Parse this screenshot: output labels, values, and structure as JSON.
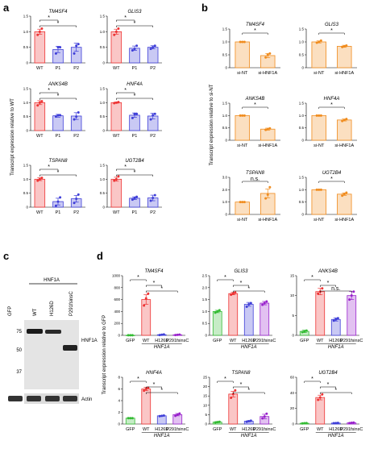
{
  "panels": {
    "a": {
      "letter": "a",
      "ylabel": "Transcript expression relative to WT"
    },
    "b": {
      "letter": "b",
      "ylabel": "Transcript expression relative to si-NT"
    },
    "c": {
      "letter": "c",
      "header": "HNF1A",
      "lanes": [
        "GFP",
        "WT",
        "H126D",
        "P291fsinsC"
      ],
      "markers": [
        "75",
        "50",
        "37"
      ],
      "band_labels": [
        "HNF1A",
        "Actin"
      ]
    },
    "d": {
      "letter": "d",
      "ylabel": "Transcript expression relative to GFP",
      "group_label": "HNF1A"
    }
  },
  "colors": {
    "red": "#ee3333",
    "blue": "#3f3fd8",
    "orange": "#f08c1e",
    "green": "#33bb33",
    "purple": "#9922cc"
  },
  "chart_data": [
    {
      "id": "a1",
      "panel": "a",
      "type": "bar",
      "title": "TM4SF4",
      "categories": [
        "WT",
        "P1",
        "P2"
      ],
      "values": [
        1.0,
        0.43,
        0.5
      ],
      "errors": [
        0.08,
        0.1,
        0.13
      ],
      "points": [
        [
          0.9,
          1.0,
          1.1
        ],
        [
          0.3,
          0.5,
          0.5
        ],
        [
          0.3,
          0.55,
          0.6
        ]
      ],
      "ylim": [
        0,
        1.5
      ],
      "yticks": [
        "0",
        "0.5",
        "1.0",
        "1.5"
      ],
      "colors": [
        "red",
        "blue",
        "blue"
      ],
      "sig": [
        "*",
        "*"
      ]
    },
    {
      "id": "a2",
      "panel": "a",
      "type": "bar",
      "title": "GLIS3",
      "categories": [
        "WT",
        "P1",
        "P2"
      ],
      "values": [
        1.0,
        0.47,
        0.5
      ],
      "errors": [
        0.08,
        0.07,
        0.05
      ],
      "points": [
        [
          0.9,
          1.0,
          1.1
        ],
        [
          0.4,
          0.45,
          0.55
        ],
        [
          0.45,
          0.5,
          0.55
        ]
      ],
      "ylim": [
        0,
        1.5
      ],
      "yticks": [
        "0",
        "0.5",
        "1.0",
        "1.5"
      ],
      "colors": [
        "red",
        "blue",
        "blue"
      ],
      "sig": [
        "*",
        "*"
      ]
    },
    {
      "id": "a3",
      "panel": "a",
      "type": "bar",
      "title": "ANKS4B",
      "categories": [
        "WT",
        "P1",
        "P2"
      ],
      "values": [
        1.0,
        0.53,
        0.52
      ],
      "errors": [
        0.07,
        0.05,
        0.12
      ],
      "points": [
        [
          0.9,
          1.0,
          1.05
        ],
        [
          0.5,
          0.55,
          0.55
        ],
        [
          0.4,
          0.5,
          0.65
        ]
      ],
      "ylim": [
        0,
        1.5
      ],
      "yticks": [
        "0",
        "0.5",
        "1.0",
        "1.5"
      ],
      "colors": [
        "red",
        "blue",
        "blue"
      ],
      "sig": [
        "*",
        "*"
      ]
    },
    {
      "id": "a4",
      "panel": "a",
      "type": "bar",
      "title": "HNF4A",
      "categories": [
        "WT",
        "P1",
        "P2"
      ],
      "values": [
        1.0,
        0.55,
        0.52
      ],
      "errors": [
        0.02,
        0.08,
        0.1
      ],
      "points": [
        [
          0.98,
          1.0,
          1.02
        ],
        [
          0.45,
          0.6,
          0.6
        ],
        [
          0.4,
          0.55,
          0.6
        ]
      ],
      "ylim": [
        0,
        1.5
      ],
      "yticks": [
        "0",
        "0.5",
        "1.0",
        "1.5"
      ],
      "colors": [
        "red",
        "blue",
        "blue"
      ],
      "sig": [
        "*",
        "*"
      ]
    },
    {
      "id": "a5",
      "panel": "a",
      "type": "bar",
      "title": "TSPAN8",
      "categories": [
        "WT",
        "P1",
        "P2"
      ],
      "values": [
        1.0,
        0.2,
        0.3
      ],
      "errors": [
        0.05,
        0.12,
        0.12
      ],
      "points": [
        [
          0.95,
          1.0,
          1.05
        ],
        [
          0.05,
          0.2,
          0.35
        ],
        [
          0.15,
          0.3,
          0.45
        ]
      ],
      "ylim": [
        0,
        1.5
      ],
      "yticks": [
        "0",
        "0.5",
        "1.0",
        "1.5"
      ],
      "colors": [
        "red",
        "blue",
        "blue"
      ],
      "sig": [
        "*",
        "*"
      ]
    },
    {
      "id": "a6",
      "panel": "a",
      "type": "bar",
      "title": "UGT2B4",
      "categories": [
        "WT",
        "P1",
        "P2"
      ],
      "values": [
        1.0,
        0.32,
        0.33
      ],
      "errors": [
        0.07,
        0.05,
        0.1
      ],
      "points": [
        [
          0.95,
          1.0,
          1.1
        ],
        [
          0.27,
          0.32,
          0.37
        ],
        [
          0.23,
          0.33,
          0.43
        ]
      ],
      "ylim": [
        0,
        1.5
      ],
      "yticks": [
        "0",
        "0.5",
        "1.0",
        "1.5"
      ],
      "colors": [
        "red",
        "blue",
        "blue"
      ],
      "sig": [
        "*",
        "*"
      ]
    },
    {
      "id": "b1",
      "panel": "b",
      "type": "bar",
      "title": "TM4SF4",
      "categories": [
        "si-NT",
        "si-HNF1A"
      ],
      "values": [
        1.0,
        0.47
      ],
      "errors": [
        0.0,
        0.08
      ],
      "points": [
        [
          1.0,
          1.0,
          1.0
        ],
        [
          0.4,
          0.5,
          0.55
        ]
      ],
      "ylim": [
        0,
        1.5
      ],
      "yticks": [
        "0",
        "0.5",
        "1.0",
        "1.5"
      ],
      "colors": [
        "orange",
        "orange"
      ],
      "sig": [
        "*"
      ]
    },
    {
      "id": "b2",
      "panel": "b",
      "type": "bar",
      "title": "GLIS3",
      "categories": [
        "si-NT",
        "si-HNF1A"
      ],
      "values": [
        1.0,
        0.83
      ],
      "errors": [
        0.04,
        0.04
      ],
      "points": [
        [
          0.97,
          1.0,
          1.05
        ],
        [
          0.8,
          0.83,
          0.86
        ]
      ],
      "ylim": [
        0,
        1.5
      ],
      "yticks": [
        "0",
        "0.5",
        "1.0",
        "1.5"
      ],
      "colors": [
        "orange",
        "orange"
      ],
      "sig": [
        "*"
      ]
    },
    {
      "id": "b3",
      "panel": "b",
      "type": "bar",
      "title": "ANKS4B",
      "categories": [
        "si-NT",
        "si-HNF1A"
      ],
      "values": [
        1.0,
        0.45
      ],
      "errors": [
        0.0,
        0.04
      ],
      "points": [
        [
          1.0,
          1.0,
          1.0
        ],
        [
          0.42,
          0.45,
          0.48
        ]
      ],
      "ylim": [
        0,
        1.5
      ],
      "yticks": [
        "0",
        "0.5",
        "1.0",
        "1.5"
      ],
      "colors": [
        "orange",
        "orange"
      ],
      "sig": [
        "*"
      ]
    },
    {
      "id": "b4",
      "panel": "b",
      "type": "bar",
      "title": "HNF4A",
      "categories": [
        "si-NT",
        "si-HNF1A"
      ],
      "values": [
        1.0,
        0.82
      ],
      "errors": [
        0.0,
        0.04
      ],
      "points": [
        [
          1.0,
          1.0,
          1.0
        ],
        [
          0.78,
          0.82,
          0.86
        ]
      ],
      "ylim": [
        0,
        1.5
      ],
      "yticks": [
        "0",
        "0.5",
        "1.0",
        "1.5"
      ],
      "colors": [
        "orange",
        "orange"
      ],
      "sig": [
        "*"
      ]
    },
    {
      "id": "b5",
      "panel": "b",
      "type": "bar",
      "title": "TSPAN8",
      "categories": [
        "si-NT",
        "si-HNF1A"
      ],
      "values": [
        1.0,
        1.7
      ],
      "errors": [
        0.0,
        0.35
      ],
      "points": [
        [
          1.0,
          1.0,
          1.0
        ],
        [
          1.3,
          1.6,
          2.2
        ]
      ],
      "ylim": [
        0,
        3.0
      ],
      "yticks": [
        "0",
        "1.0",
        "2.0",
        "3.0"
      ],
      "colors": [
        "orange",
        "orange"
      ],
      "sig": [
        "n.s."
      ]
    },
    {
      "id": "b6",
      "panel": "b",
      "type": "bar",
      "title": "UGT2B4",
      "categories": [
        "si-NT",
        "si-HNF1A"
      ],
      "values": [
        1.0,
        0.82
      ],
      "errors": [
        0.0,
        0.05
      ],
      "points": [
        [
          1.0,
          1.0,
          1.0
        ],
        [
          0.76,
          0.82,
          0.88
        ]
      ],
      "ylim": [
        0,
        1.5
      ],
      "yticks": [
        "0",
        "0.5",
        "1.0",
        "1.5"
      ],
      "colors": [
        "orange",
        "orange"
      ],
      "sig": [
        "*"
      ]
    },
    {
      "id": "d1",
      "panel": "d",
      "type": "bar",
      "title": "TM4SF4",
      "categories": [
        "GFP",
        "WT",
        "H126D",
        "P291fsinsC"
      ],
      "values": [
        1.0,
        600,
        10,
        8
      ],
      "errors": [
        0.2,
        80,
        3,
        3
      ],
      "points": [
        [
          1,
          1,
          1
        ],
        [
          500,
          620,
          700
        ],
        [
          5,
          10,
          15
        ],
        [
          5,
          8,
          12
        ]
      ],
      "ylim": [
        0,
        1000
      ],
      "yticks": [
        "0",
        "200",
        "400",
        "600",
        "800",
        "1000"
      ],
      "colors": [
        "green",
        "red",
        "blue",
        "purple"
      ],
      "sig": [
        "*",
        "*",
        "*"
      ]
    },
    {
      "id": "d2",
      "panel": "d",
      "type": "bar",
      "title": "GLIS3",
      "categories": [
        "GFP",
        "WT",
        "H126D",
        "P291fsinsC"
      ],
      "values": [
        1.0,
        1.75,
        1.3,
        1.35
      ],
      "errors": [
        0.05,
        0.05,
        0.08,
        0.07
      ],
      "points": [
        [
          0.95,
          1.0,
          1.05
        ],
        [
          1.7,
          1.75,
          1.8
        ],
        [
          1.2,
          1.3,
          1.35
        ],
        [
          1.28,
          1.35,
          1.42
        ]
      ],
      "ylim": [
        0,
        2.5
      ],
      "yticks": [
        "0",
        "0.5",
        "1.0",
        "1.5",
        "2.0",
        "2.5"
      ],
      "colors": [
        "green",
        "red",
        "blue",
        "purple"
      ],
      "sig": [
        "*",
        "*",
        "*"
      ]
    },
    {
      "id": "d3",
      "panel": "d",
      "type": "bar",
      "title": "ANKS4B",
      "categories": [
        "GFP",
        "WT",
        "H126D",
        "P291fsinsC"
      ],
      "values": [
        1.0,
        11,
        4,
        10
      ],
      "errors": [
        0.3,
        0.8,
        0.4,
        1.0
      ],
      "points": [
        [
          0.8,
          1.0,
          1.2
        ],
        [
          10.5,
          11,
          11.8
        ],
        [
          3.7,
          4,
          4.3
        ],
        [
          9,
          10,
          11
        ]
      ],
      "ylim": [
        0,
        15
      ],
      "yticks": [
        "0",
        "5",
        "10",
        "15"
      ],
      "colors": [
        "green",
        "red",
        "blue",
        "purple"
      ],
      "sig": [
        "*",
        "*",
        "n.s."
      ]
    },
    {
      "id": "d4",
      "panel": "d",
      "type": "bar",
      "title": "HNF4A",
      "categories": [
        "GFP",
        "WT",
        "H126D",
        "P291fsinsC"
      ],
      "values": [
        1.0,
        6.0,
        1.4,
        1.6
      ],
      "errors": [
        0.05,
        0.3,
        0.05,
        0.2
      ],
      "points": [
        [
          1.0,
          1.0,
          1.0
        ],
        [
          5.7,
          6.0,
          6.2
        ],
        [
          1.35,
          1.4,
          1.45
        ],
        [
          1.4,
          1.6,
          1.8
        ]
      ],
      "ylim": [
        0,
        8
      ],
      "yticks": [
        "0",
        "2",
        "4",
        "6",
        "8"
      ],
      "colors": [
        "green",
        "red",
        "blue",
        "purple"
      ],
      "sig": [
        "*",
        "*",
        "*"
      ]
    },
    {
      "id": "d5",
      "panel": "d",
      "type": "bar",
      "title": "TSPAN8",
      "categories": [
        "GFP",
        "WT",
        "H126D",
        "P291fsinsC"
      ],
      "values": [
        1.0,
        16,
        1.5,
        4
      ],
      "errors": [
        0.3,
        1.5,
        0.3,
        1.2
      ],
      "points": [
        [
          0.8,
          1.0,
          1.2
        ],
        [
          14,
          16,
          18
        ],
        [
          1.2,
          1.5,
          1.8
        ],
        [
          3,
          4,
          5.5
        ]
      ],
      "ylim": [
        0,
        25
      ],
      "yticks": [
        "0",
        "5",
        "10",
        "15",
        "20",
        "25"
      ],
      "colors": [
        "green",
        "red",
        "blue",
        "purple"
      ],
      "sig": [
        "*",
        "*",
        "*"
      ]
    },
    {
      "id": "d6",
      "panel": "d",
      "type": "bar",
      "title": "UGT2B4",
      "categories": [
        "GFP",
        "WT",
        "H126D",
        "P291fsinsC"
      ],
      "values": [
        1.0,
        34,
        1.2,
        1.5
      ],
      "errors": [
        0.2,
        3,
        0.2,
        0.3
      ],
      "points": [
        [
          0.8,
          1.0,
          1.2
        ],
        [
          31,
          34,
          38
        ],
        [
          1.0,
          1.2,
          1.4
        ],
        [
          1.2,
          1.5,
          1.8
        ]
      ],
      "ylim": [
        0,
        60
      ],
      "yticks": [
        "0",
        "20",
        "40",
        "60"
      ],
      "colors": [
        "green",
        "red",
        "blue",
        "purple"
      ],
      "sig": [
        "*",
        "*",
        "*"
      ]
    }
  ]
}
